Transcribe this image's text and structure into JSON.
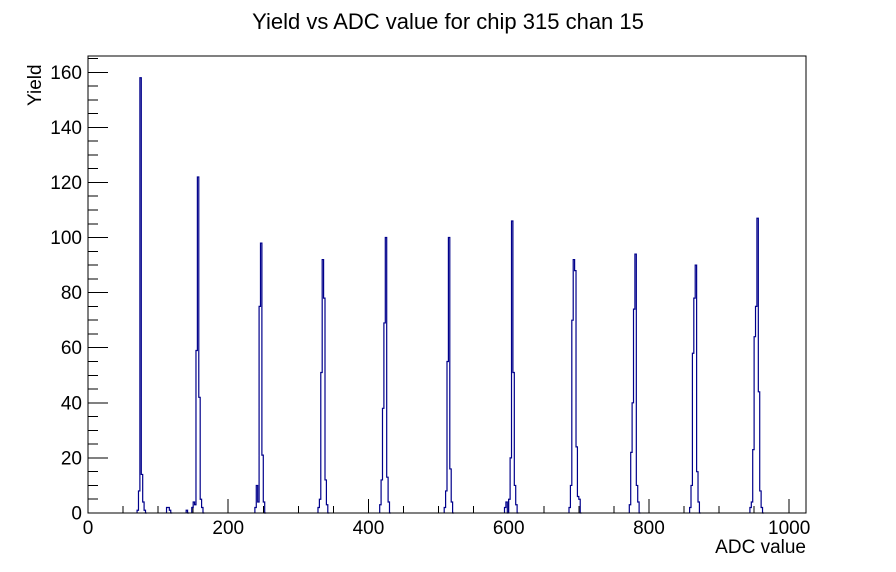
{
  "window": {
    "background": "#ffffff"
  },
  "chart_data": {
    "type": "histogram",
    "title": "Yield vs ADC value for chip 315 chan 15",
    "xlabel": "ADC value",
    "ylabel": "Yield",
    "x_range": [
      0,
      1024
    ],
    "y_range": [
      0,
      165.9
    ],
    "x_major_tick_values": [
      0,
      200,
      400,
      600,
      800,
      1000
    ],
    "x_major_tick_labels": [
      "0",
      "200",
      "400",
      "600",
      "800",
      "1000"
    ],
    "x_minor_tick_step": 50,
    "y_major_tick_values": [
      0,
      20,
      40,
      60,
      80,
      100,
      120,
      140,
      160
    ],
    "y_major_tick_labels": [
      "0",
      "20",
      "40",
      "60",
      "80",
      "100",
      "120",
      "140",
      "160"
    ],
    "y_minor_tick_step": 5,
    "grid": false,
    "legend": null,
    "line_color": "#00008b",
    "axis_color": "#000000",
    "bin_width_adc": 2,
    "peaks": [
      {
        "adc": 75,
        "yield": 158
      },
      {
        "adc": 156,
        "yield": 122
      },
      {
        "adc": 246,
        "yield": 98
      },
      {
        "adc": 334,
        "yield": 92
      },
      {
        "adc": 424,
        "yield": 100
      },
      {
        "adc": 514,
        "yield": 100
      },
      {
        "adc": 605,
        "yield": 106
      },
      {
        "adc": 693,
        "yield": 92
      },
      {
        "adc": 781,
        "yield": 94
      },
      {
        "adc": 866,
        "yield": 90
      },
      {
        "adc": 954,
        "yield": 107
      }
    ],
    "bins": [
      [
        70,
        1
      ],
      [
        72,
        8
      ],
      [
        74,
        158
      ],
      [
        76,
        14
      ],
      [
        78,
        4
      ],
      [
        80,
        1
      ],
      [
        112,
        2
      ],
      [
        114,
        2
      ],
      [
        116,
        1
      ],
      [
        140,
        1
      ],
      [
        148,
        2
      ],
      [
        150,
        4
      ],
      [
        152,
        3
      ],
      [
        154,
        59
      ],
      [
        156,
        122
      ],
      [
        158,
        42
      ],
      [
        160,
        5
      ],
      [
        162,
        2
      ],
      [
        238,
        2
      ],
      [
        240,
        10
      ],
      [
        242,
        4
      ],
      [
        244,
        75
      ],
      [
        246,
        98
      ],
      [
        248,
        21
      ],
      [
        250,
        4
      ],
      [
        328,
        2
      ],
      [
        330,
        5
      ],
      [
        332,
        51
      ],
      [
        334,
        92
      ],
      [
        336,
        78
      ],
      [
        338,
        12
      ],
      [
        340,
        3
      ],
      [
        416,
        3
      ],
      [
        418,
        12
      ],
      [
        420,
        38
      ],
      [
        422,
        69
      ],
      [
        424,
        100
      ],
      [
        426,
        13
      ],
      [
        428,
        4
      ],
      [
        508,
        2
      ],
      [
        510,
        8
      ],
      [
        512,
        55
      ],
      [
        514,
        100
      ],
      [
        516,
        16
      ],
      [
        518,
        4
      ],
      [
        594,
        2
      ],
      [
        596,
        4
      ],
      [
        600,
        5
      ],
      [
        602,
        20
      ],
      [
        604,
        106
      ],
      [
        606,
        51
      ],
      [
        608,
        10
      ],
      [
        610,
        3
      ],
      [
        686,
        2
      ],
      [
        688,
        10
      ],
      [
        690,
        70
      ],
      [
        692,
        92
      ],
      [
        694,
        88
      ],
      [
        696,
        24
      ],
      [
        698,
        6
      ],
      [
        700,
        5
      ],
      [
        772,
        3
      ],
      [
        774,
        22
      ],
      [
        776,
        40
      ],
      [
        778,
        74
      ],
      [
        780,
        94
      ],
      [
        782,
        10
      ],
      [
        784,
        4
      ],
      [
        858,
        2
      ],
      [
        860,
        10
      ],
      [
        862,
        58
      ],
      [
        864,
        78
      ],
      [
        866,
        90
      ],
      [
        868,
        15
      ],
      [
        870,
        4
      ],
      [
        944,
        2
      ],
      [
        946,
        4
      ],
      [
        948,
        23
      ],
      [
        950,
        64
      ],
      [
        952,
        75
      ],
      [
        954,
        107
      ],
      [
        956,
        44
      ],
      [
        958,
        8
      ],
      [
        960,
        2
      ]
    ]
  }
}
